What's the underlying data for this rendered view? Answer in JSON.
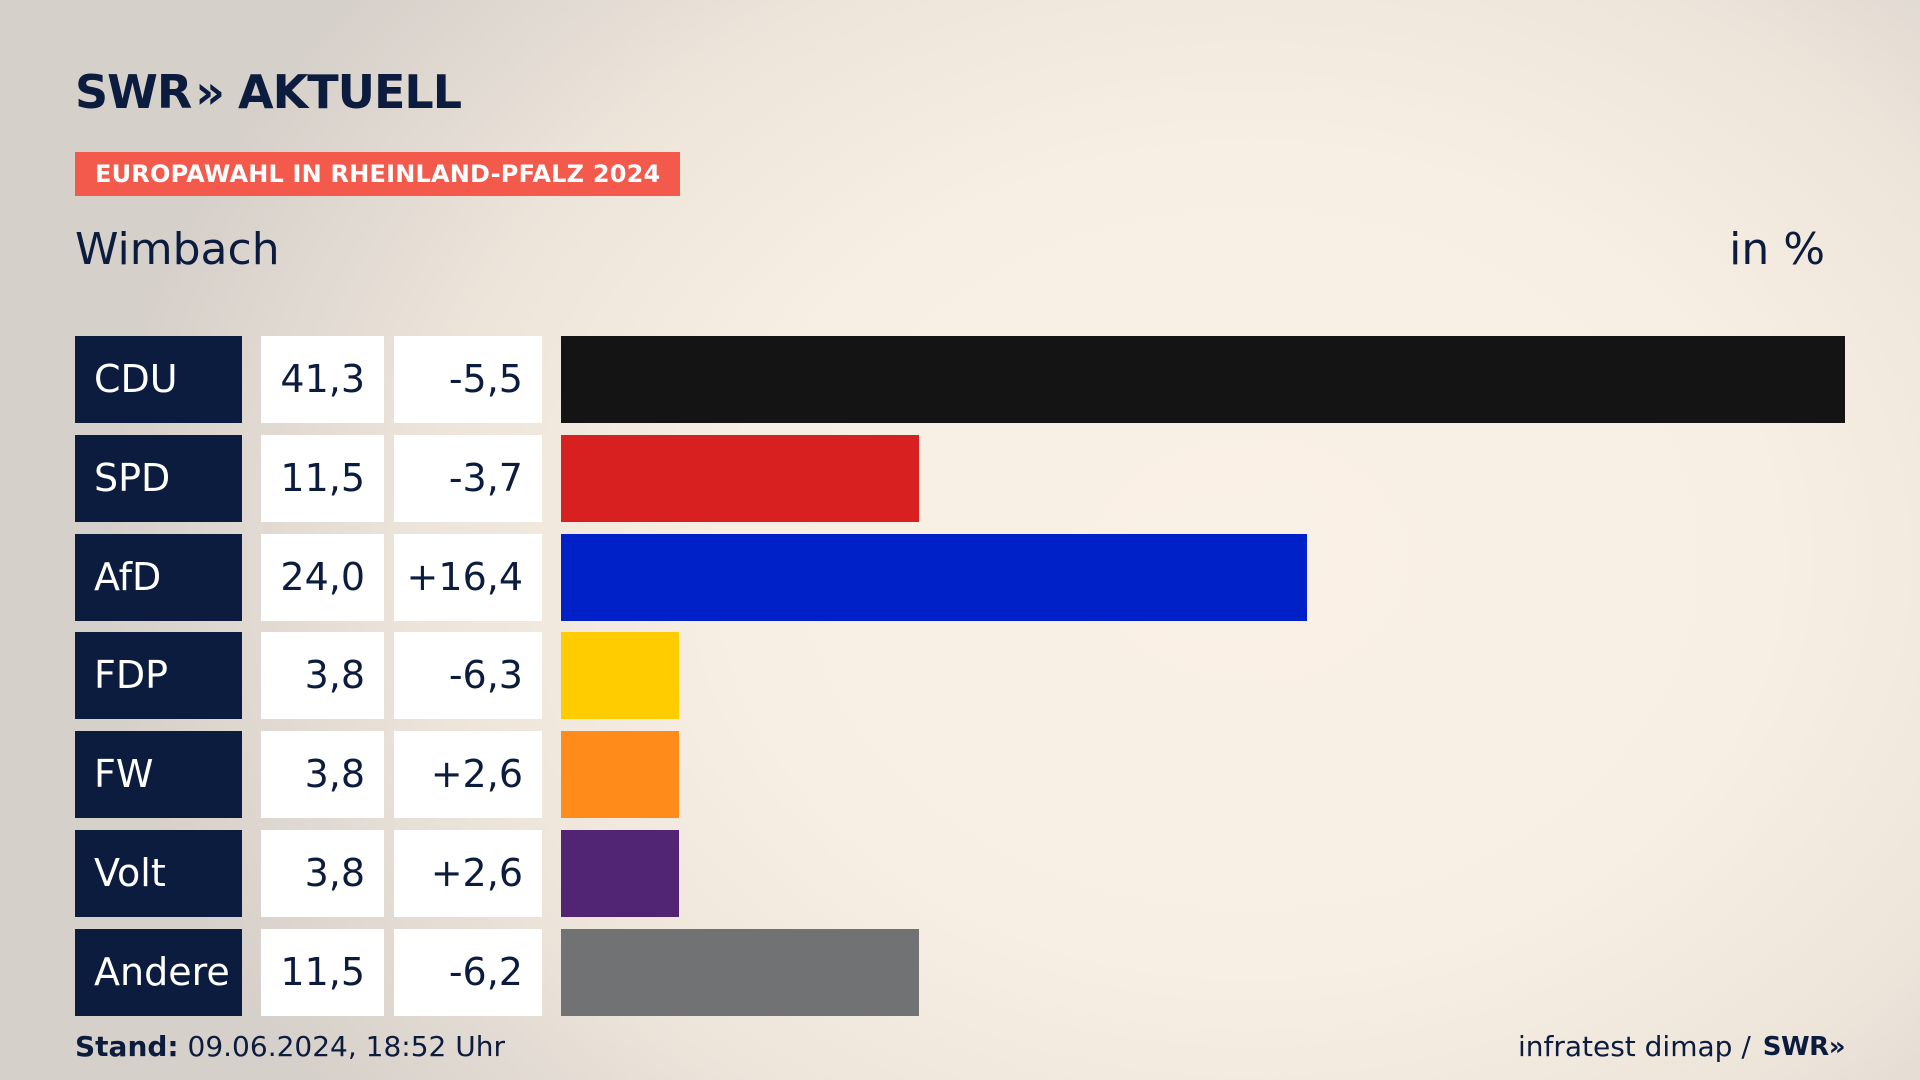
{
  "brand": {
    "logo_text": "SWR",
    "logo_chevrons": "»",
    "logo_suffix": "AKTUELL"
  },
  "header": {
    "badge": "EUROPAWAHL IN RHEINLAND-PFALZ 2024",
    "region": "Wimbach",
    "unit": "in %"
  },
  "chart_data": {
    "type": "bar",
    "orientation": "horizontal",
    "categories": [
      "CDU",
      "SPD",
      "AfD",
      "FDP",
      "FW",
      "Volt",
      "Andere"
    ],
    "values": [
      41.3,
      11.5,
      24.0,
      3.8,
      3.8,
      3.8,
      11.5
    ],
    "value_labels": [
      "41,3",
      "11,5",
      "24,0",
      "3,8",
      "3,8",
      "3,8",
      "11,5"
    ],
    "diff_labels": [
      "-5,5",
      "-3,7",
      "+16,4",
      "-6,3",
      "+2,6",
      "+2,6",
      "-6,2"
    ],
    "diffs": [
      -5.5,
      -3.7,
      16.4,
      -6.3,
      2.6,
      2.6,
      -6.2
    ],
    "colors": [
      "#141414",
      "#d7201f",
      "#0021c8",
      "#ffcc00",
      "#ff8c1a",
      "#512474",
      "#717274"
    ],
    "xlim": [
      0,
      41.3
    ],
    "grid": false,
    "legend": "none"
  },
  "footer": {
    "stand_label": "Stand:",
    "stand_value": "09.06.2024, 18:52 Uhr",
    "source": "infratest dimap /",
    "source_brand": "SWR",
    "source_chevrons": "»"
  }
}
